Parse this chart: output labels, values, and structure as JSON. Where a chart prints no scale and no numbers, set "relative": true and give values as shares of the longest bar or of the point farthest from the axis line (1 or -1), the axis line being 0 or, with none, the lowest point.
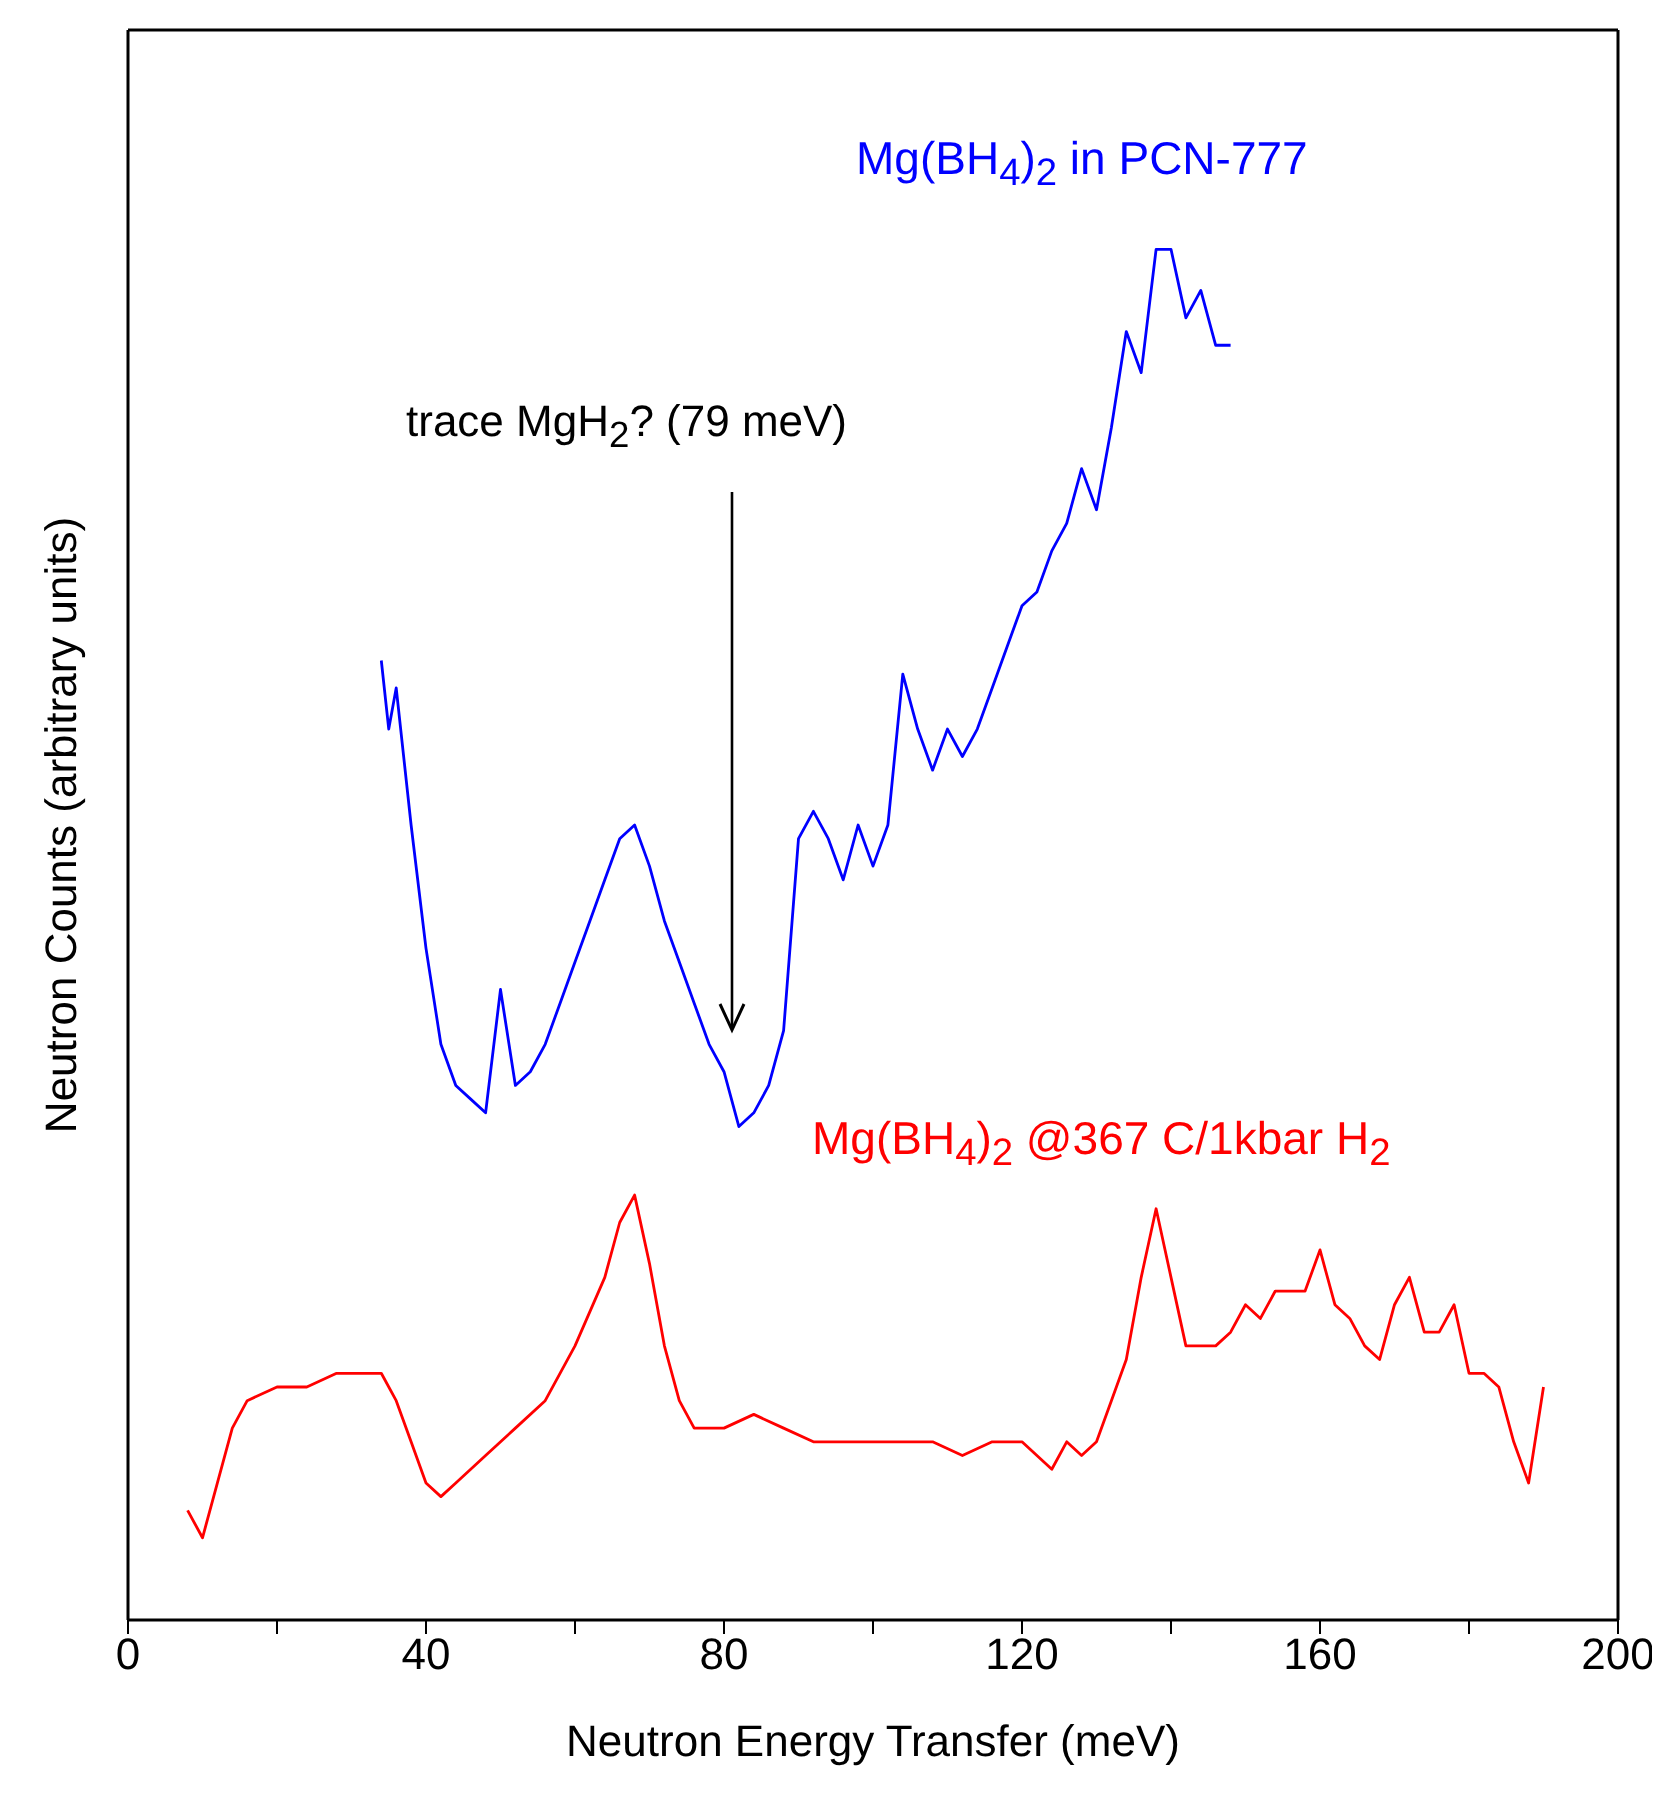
{
  "chart_data": {
    "type": "line",
    "relative": true,
    "xlabel": "Neutron Energy Transfer (meV)",
    "ylabel": "Neutron Counts (arbitrary units)",
    "xlim": [
      0,
      200
    ],
    "xticks": [
      0,
      {
        "value": 20,
        "label": null
      },
      40,
      {
        "value": 60,
        "label": null
      },
      80,
      {
        "value": 100,
        "label": null
      },
      120,
      {
        "value": 140,
        "label": null
      },
      160,
      {
        "value": 180,
        "label": null
      },
      200
    ],
    "grid": false,
    "legend": false,
    "line_style": "solid",
    "annotations": [
      "trace MgH$_{2}$? (79 meV)"
    ],
    "series": [
      {
        "name": "Mg(BH$_{4}$)$_{2}$ in PCN-777",
        "color": "#0000ff",
        "x": [
          34,
          35,
          36,
          38,
          40,
          42,
          44,
          46,
          48,
          50,
          52,
          54,
          56,
          58,
          60,
          62,
          64,
          66,
          68,
          70,
          72,
          74,
          76,
          78,
          80,
          82,
          84,
          86,
          88,
          90,
          92,
          94,
          96,
          98,
          100,
          102,
          104,
          106,
          108,
          110,
          112,
          114,
          116,
          118,
          120,
          122,
          124,
          126,
          128,
          130,
          132,
          134,
          136,
          138,
          140,
          142,
          144,
          146,
          148
        ],
        "values": [
          0.7,
          0.65,
          0.68,
          0.58,
          0.49,
          0.42,
          0.39,
          0.38,
          0.37,
          0.46,
          0.39,
          0.4,
          0.42,
          0.45,
          0.48,
          0.51,
          0.54,
          0.57,
          0.58,
          0.55,
          0.51,
          0.48,
          0.45,
          0.42,
          0.4,
          0.36,
          0.37,
          0.39,
          0.43,
          0.57,
          0.59,
          0.57,
          0.54,
          0.58,
          0.55,
          0.58,
          0.69,
          0.65,
          0.62,
          0.65,
          0.63,
          0.65,
          0.68,
          0.71,
          0.74,
          0.75,
          0.78,
          0.8,
          0.84,
          0.81,
          0.87,
          0.94,
          0.91,
          1.0,
          1.0,
          0.95,
          0.97,
          0.93,
          0.93
        ]
      },
      {
        "name": "Mg(BH$_{4}$)$_{2}$ @367 C/1kbar H$_{2}$",
        "color": "#ff0000",
        "x": [
          8,
          10,
          12,
          14,
          16,
          20,
          24,
          28,
          32,
          34,
          36,
          38,
          40,
          42,
          44,
          48,
          52,
          56,
          60,
          64,
          66,
          68,
          70,
          72,
          74,
          76,
          80,
          84,
          88,
          92,
          96,
          100,
          104,
          108,
          112,
          116,
          120,
          124,
          126,
          128,
          130,
          132,
          134,
          136,
          138,
          140,
          142,
          144,
          146,
          148,
          150,
          152,
          154,
          156,
          158,
          160,
          162,
          164,
          166,
          168,
          170,
          172,
          174,
          176,
          178,
          180,
          182,
          184,
          186,
          188,
          190
        ],
        "values": [
          0.08,
          0.06,
          0.1,
          0.14,
          0.16,
          0.17,
          0.17,
          0.18,
          0.18,
          0.18,
          0.16,
          0.13,
          0.1,
          0.09,
          0.1,
          0.12,
          0.14,
          0.16,
          0.2,
          0.25,
          0.29,
          0.31,
          0.26,
          0.2,
          0.16,
          0.14,
          0.14,
          0.15,
          0.14,
          0.13,
          0.13,
          0.13,
          0.13,
          0.13,
          0.12,
          0.13,
          0.13,
          0.11,
          0.13,
          0.12,
          0.13,
          0.16,
          0.19,
          0.25,
          0.3,
          0.25,
          0.2,
          0.2,
          0.2,
          0.21,
          0.23,
          0.22,
          0.24,
          0.24,
          0.24,
          0.27,
          0.23,
          0.22,
          0.2,
          0.19,
          0.23,
          0.25,
          0.21,
          0.21,
          0.23,
          0.18,
          0.18,
          0.17,
          0.13,
          0.1,
          0.17
        ]
      }
    ]
  }
}
